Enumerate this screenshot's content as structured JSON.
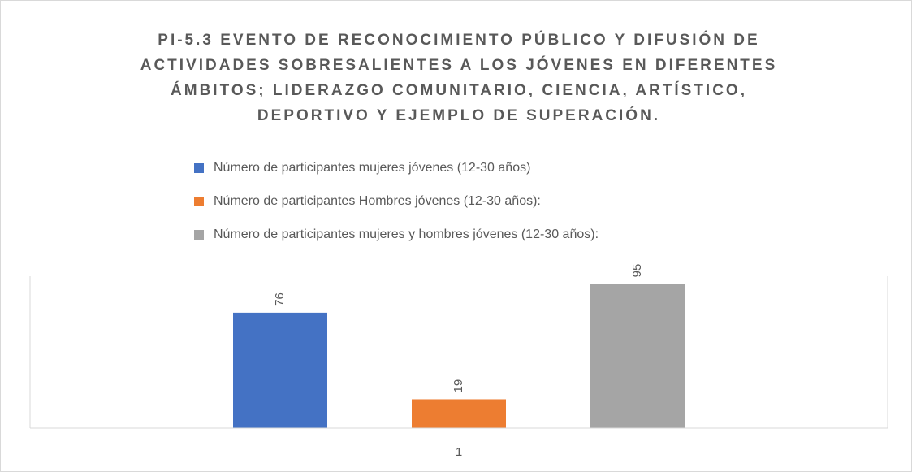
{
  "chart_data": {
    "type": "bar",
    "title": [
      "PI-5.3 EVENTO DE RECONOCIMIENTO PÚBLICO Y DIFUSIÓN DE",
      "ACTIVIDADES SOBRESALIENTES A LOS JÓVENES EN DIFERENTES",
      "ÁMBITOS; LIDERAZGO COMUNITARIO, CIENCIA, ARTÍSTICO,",
      "DEPORTIVO Y EJEMPLO DE SUPERACIÓN."
    ],
    "categories": [
      "1"
    ],
    "series": [
      {
        "name": "Número de participantes mujeres jóvenes (12-30 años)",
        "color": "#4472c4",
        "values": [
          76
        ]
      },
      {
        "name": "Número de participantes Hombres jóvenes (12-30 años):",
        "color": "#ed7d31",
        "values": [
          19
        ]
      },
      {
        "name": "Número de participantes mujeres y hombres jóvenes (12-30 años):",
        "color": "#a5a5a5",
        "values": [
          95
        ]
      }
    ],
    "ylim": [
      0,
      100
    ],
    "legend": "top"
  }
}
